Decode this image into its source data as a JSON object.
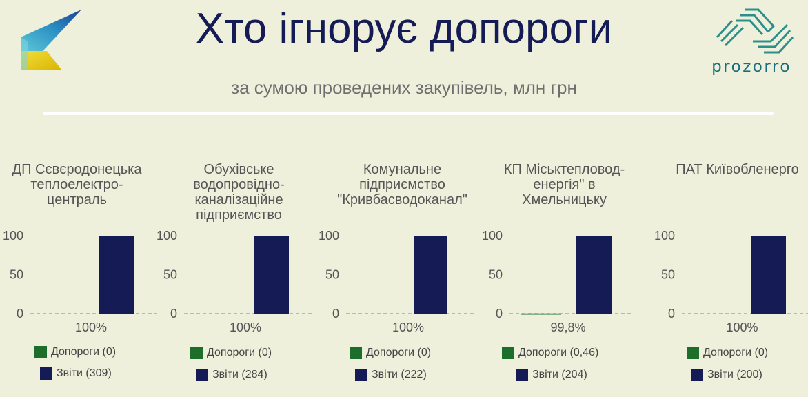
{
  "header": {
    "title": "Хто ігнорує допороги",
    "subtitle": "за сумою проведених закупівель, млн грн",
    "brand": "prozorro"
  },
  "colors": {
    "background": "#eff0dc",
    "dopororhy": "#1d6e2b",
    "zvity": "#151b54",
    "title": "#151b54",
    "brand": "#1a6f7d"
  },
  "chart_data": [
    {
      "type": "bar",
      "title": "ДП Сєвєродонецька теплоелектро-централь",
      "ylim": [
        0,
        100
      ],
      "yticks": [
        "100",
        "50",
        "0"
      ],
      "series": [
        {
          "name": "Допороги (0)",
          "value": 0
        },
        {
          "name": "Звіти (309)",
          "value": 100
        }
      ],
      "annotation": "100%"
    },
    {
      "type": "bar",
      "title": "Обухівське водопровідно-каналізаційне підприємство",
      "ylim": [
        0,
        100
      ],
      "yticks": [
        "100",
        "50",
        "0"
      ],
      "series": [
        {
          "name": "Допороги (0)",
          "value": 0
        },
        {
          "name": "Звіти (284)",
          "value": 100
        }
      ],
      "annotation": "100%"
    },
    {
      "type": "bar",
      "title": "Комунальне підприємство \"Кривбасводоканал\"",
      "ylim": [
        0,
        100
      ],
      "yticks": [
        "100",
        "50",
        "0"
      ],
      "series": [
        {
          "name": "Допороги (0)",
          "value": 0
        },
        {
          "name": "Звіти (222)",
          "value": 100
        }
      ],
      "annotation": "100%"
    },
    {
      "type": "bar",
      "title": "КП Міськтепловод-енергія\" в Хмельницьку",
      "ylim": [
        0,
        100
      ],
      "yticks": [
        "100",
        "50",
        "0"
      ],
      "series": [
        {
          "name": "Допороги (0,46)",
          "value": 0.2
        },
        {
          "name": "Звіти (204)",
          "value": 99.8
        }
      ],
      "annotation": "99,8%"
    },
    {
      "type": "bar",
      "title": "ПАТ Київобленерго",
      "ylim": [
        0,
        100
      ],
      "yticks": [
        "100",
        "50",
        "0"
      ],
      "series": [
        {
          "name": "Допороги (0)",
          "value": 0
        },
        {
          "name": "Звіти (200)",
          "value": 100
        }
      ],
      "annotation": "100%"
    }
  ]
}
